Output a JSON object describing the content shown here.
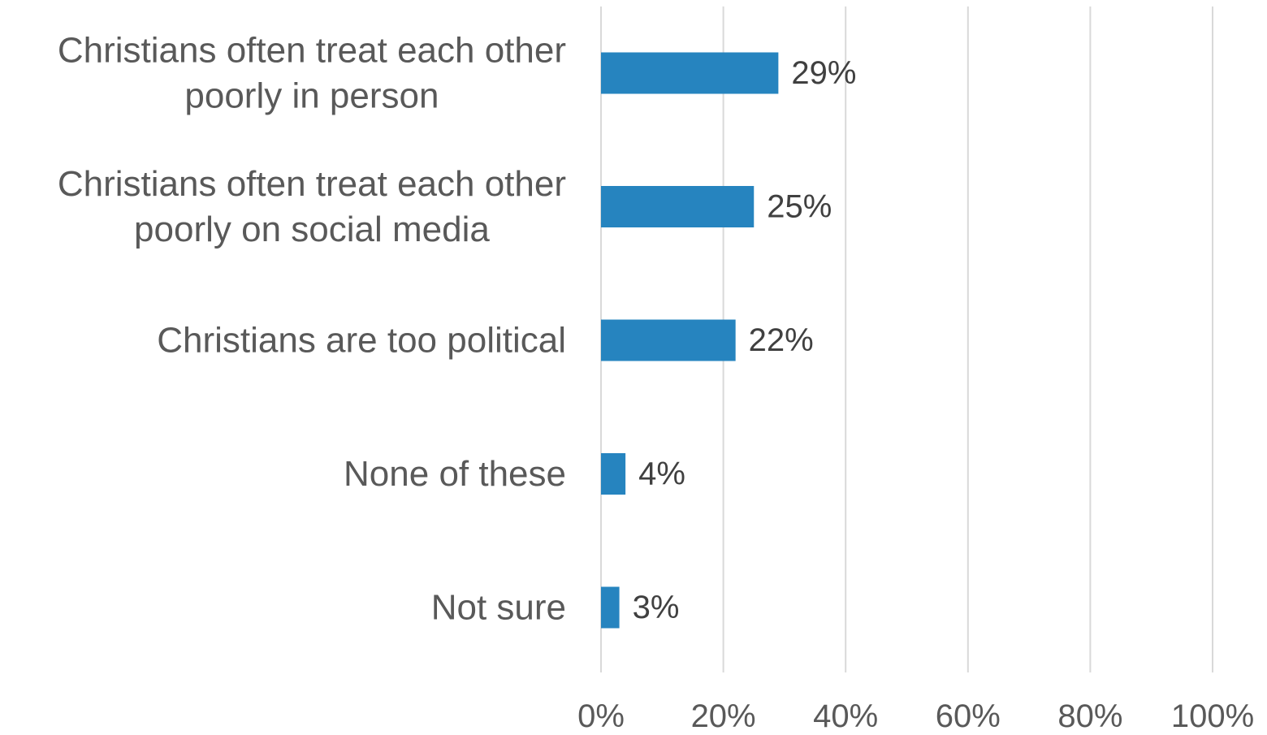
{
  "chart_data": {
    "type": "bar",
    "orientation": "horizontal",
    "title": "",
    "xlabel": "",
    "ylabel": "",
    "categories": [
      [
        "Christians often treat each other",
        "poorly in person"
      ],
      [
        "Christians often treat each other",
        "poorly on social media"
      ],
      [
        "Christians are too political"
      ],
      [
        "None of these"
      ],
      [
        "Not sure"
      ]
    ],
    "values": [
      29,
      25,
      22,
      4,
      3
    ],
    "value_labels": [
      "29%",
      "25%",
      "22%",
      "4%",
      "3%"
    ],
    "xlim": [
      0,
      100
    ],
    "x_ticks": [
      0,
      20,
      40,
      60,
      80,
      100
    ],
    "x_tick_labels": [
      "0%",
      "20%",
      "40%",
      "60%",
      "80%",
      "100%"
    ],
    "grid": "vertical",
    "legend": "none",
    "colors": {
      "bar": "#2684BF",
      "grid": "#D9D9D9",
      "category_text": "#595959",
      "value_text": "#404040",
      "tick_text": "#595959"
    }
  }
}
